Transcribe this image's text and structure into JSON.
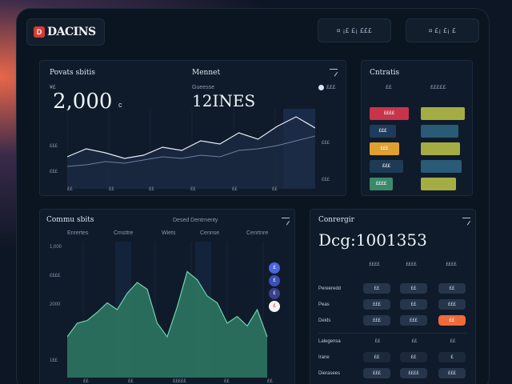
{
  "brand": {
    "name": "DACINS",
    "logo_mark": "D"
  },
  "header": {
    "chip_1": "¤ ¡£ £¡ £££",
    "chip_2": "¤ £¡ £¡ £"
  },
  "top_card": {
    "title": "Povats sbitis",
    "metric1_label": "¥£",
    "metric1_value": "2,000",
    "metric1_suffix": "c",
    "metric2_title": "Mennet",
    "metric2_label": "Gueesse",
    "metric2_value": "12INES",
    "legend": "£££",
    "y_ticks": [
      "£££",
      "£££",
      "£££"
    ],
    "y_right": [
      "£££",
      "£££"
    ],
    "x_ticks": [
      "££",
      "££",
      "££",
      "££",
      "££",
      "££"
    ],
    "line_a": [
      60,
      50,
      55,
      62,
      58,
      48,
      52,
      40,
      44,
      30,
      38,
      22,
      10,
      24
    ],
    "line_b": [
      72,
      70,
      66,
      68,
      64,
      60,
      62,
      58,
      60,
      52,
      50,
      46,
      40,
      34
    ]
  },
  "mini_card": {
    "title": "Cntratis",
    "col1": "££",
    "col2": "£££££",
    "cells": [
      "££££",
      "£££",
      "£££",
      "£££",
      "££££"
    ],
    "heights": [
      0.82,
      0.55,
      0.62,
      0.7,
      0.48
    ]
  },
  "left_card": {
    "title": "Commu sbits",
    "subtitle": "Desed Dentrnenty",
    "columns": [
      "Enrertes",
      "Cmsttre",
      "Wiets",
      "Cennse",
      "Cenrtnre"
    ],
    "y_ticks": [
      "1,000",
      "££££",
      "2000",
      "1££"
    ],
    "x_ticks": [
      "££",
      "££",
      "£££££",
      "££",
      "££"
    ],
    "area": [
      30,
      40,
      42,
      48,
      55,
      50,
      62,
      70,
      65,
      40,
      30,
      52,
      78,
      72,
      60,
      55,
      40,
      45,
      38,
      50,
      30
    ],
    "dots": [
      "£",
      "£",
      "£",
      "£"
    ]
  },
  "right_card": {
    "title": "Conrergir",
    "big_value": "Dcg:1001353",
    "col_headers": [
      "££££",
      "££££",
      "££££"
    ],
    "rows": [
      {
        "label": "Pereeredd",
        "v1": "££",
        "v2": "££",
        "v3": "££",
        "accent": false
      },
      {
        "label": "Peas",
        "v1": "£££",
        "v2": "££",
        "v3": "£££",
        "accent": false
      },
      {
        "label": "Deids",
        "v1": "£££",
        "v2": "£££",
        "v3": "££",
        "accent": true
      }
    ],
    "lower_rows": [
      {
        "label": "Lalegensa",
        "v1": "££",
        "v2": "££",
        "v3": "££"
      },
      {
        "label": "Irane",
        "v1": "££",
        "v2": "££",
        "v3": "£"
      },
      {
        "label": "Dierasees",
        "v1": "£££",
        "v2": "££££",
        "v3": "£££"
      }
    ]
  }
}
